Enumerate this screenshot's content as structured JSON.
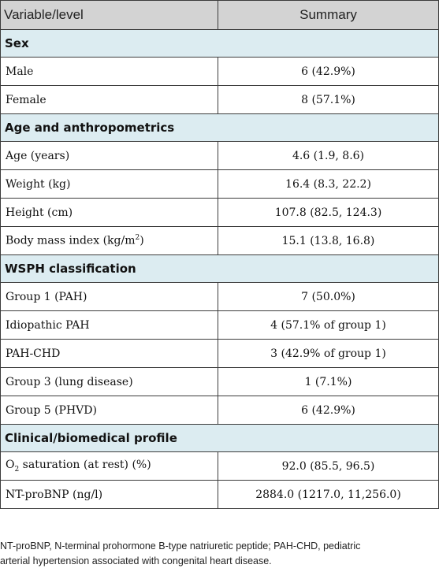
{
  "table": {
    "header": {
      "variable": "Variable/level",
      "summary": "Summary"
    },
    "sections": [
      {
        "title": "Sex",
        "rows": [
          {
            "label": "Male",
            "value": "6 (42.9%)"
          },
          {
            "label": "Female",
            "value": "8 (57.1%)"
          }
        ]
      },
      {
        "title": "Age and anthropometrics",
        "rows": [
          {
            "label": "Age (years)",
            "value": "4.6 (1.9, 8.6)"
          },
          {
            "label": "Weight (kg)",
            "value": "16.4 (8.3, 22.2)"
          },
          {
            "label": "Height (cm)",
            "value": "107.8 (82.5, 124.3)"
          },
          {
            "label": "Body mass index (kg/m",
            "sup": "2",
            "label_after": ")",
            "value": "15.1 (13.8, 16.8)"
          }
        ]
      },
      {
        "title": "WSPH classification",
        "rows": [
          {
            "label": "Group 1 (PAH)",
            "value": "7 (50.0%)"
          },
          {
            "label": "Idiopathic PAH",
            "value": "4 (57.1% of group 1)"
          },
          {
            "label": "PAH-CHD",
            "value": "3 (42.9% of group 1)"
          },
          {
            "label": "Group 3 (lung disease)",
            "value": "1 (7.1%)"
          },
          {
            "label": "Group 5 (PHVD)",
            "value": "6 (42.9%)"
          }
        ]
      },
      {
        "title": "Clinical/biomedical profile",
        "rows": [
          {
            "label": "O",
            "sub": "2",
            "label_after": " saturation (at rest) (%)",
            "value": "92.0 (85.5, 96.5)"
          },
          {
            "label": "NT-proBNP (ng/l)",
            "value": "2884.0 (1217.0, 11,256.0)"
          }
        ]
      }
    ]
  },
  "footnote": {
    "line1": "NT-proBNP, N-terminal prohormone B-type natriuretic peptide; PAH-CHD, pediatric",
    "line2": "arterial hypertension associated with congenital heart disease."
  }
}
